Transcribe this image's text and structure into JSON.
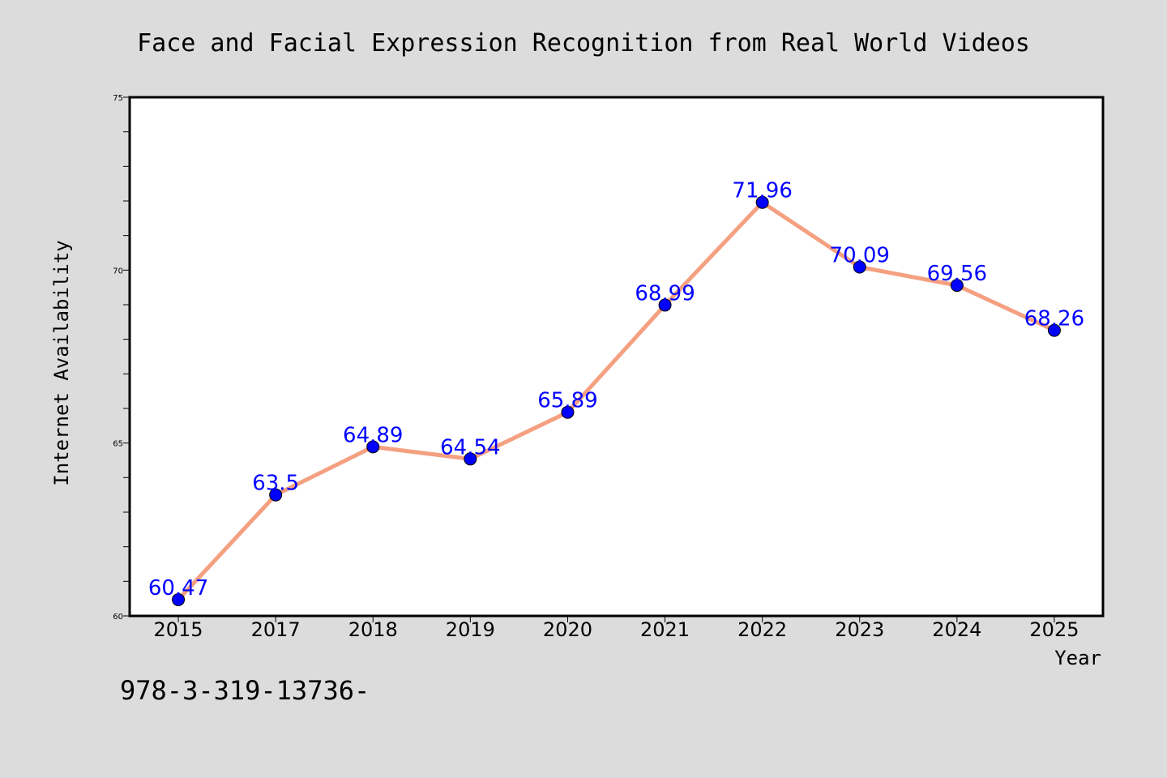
{
  "chart_data": {
    "type": "line",
    "title": "Face and Facial Expression Recognition from Real World Videos",
    "xlabel": "Year",
    "ylabel": "Internet Availability",
    "categories": [
      "2015",
      "2017",
      "2018",
      "2019",
      "2020",
      "2021",
      "2022",
      "2023",
      "2024",
      "2025"
    ],
    "series": [
      {
        "values": [
          60.47,
          63.5,
          64.89,
          64.54,
          65.89,
          68.99,
          71.96,
          70.09,
          69.56,
          68.26
        ],
        "labels": [
          "60.47",
          "63.5",
          "64.89",
          "64.54",
          "65.89",
          "68.99",
          "71.96",
          "70.09",
          "69.56",
          "68.26"
        ]
      }
    ],
    "ylim": [
      60,
      75
    ],
    "yticks": [
      "60",
      "65",
      "70",
      "75"
    ],
    "y_minor_step": 1,
    "grid": false,
    "colors": {
      "line": "#f4a081",
      "marker": "#0000ff",
      "data_label": "#0000ff",
      "plot_background": "#ffffff",
      "figure_background": "#dcdcdc"
    }
  },
  "footnote": "978-3-319-13736-"
}
